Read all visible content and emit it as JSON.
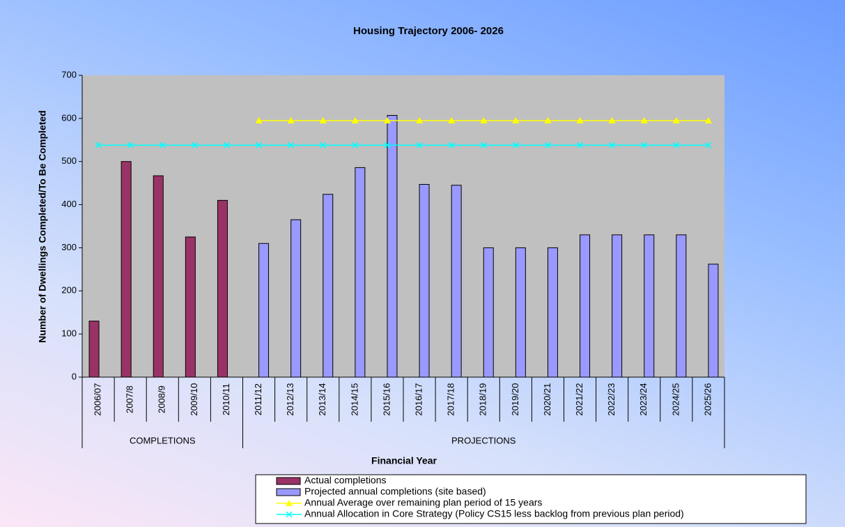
{
  "chart_data": {
    "type": "bar",
    "title": "Housing Trajectory 2006- 2026",
    "x_label": "Financial Year",
    "y_label": "Number of Dwellings Completed/To Be Completed",
    "categories": [
      "2006/07",
      "2007/8",
      "2008/9",
      "2009/10",
      "2010/11",
      "2011/12",
      "2012/13",
      "2013/14",
      "2014/15",
      "2015/16",
      "2016/17",
      "2017/18",
      "2018/19",
      "2019/20",
      "2020/21",
      "2021/22",
      "2022/23",
      "2023/24",
      "2024/25",
      "2025/26"
    ],
    "groups": [
      {
        "label": "COMPLETIONS",
        "count": 5
      },
      {
        "label": "PROJECTIONS",
        "count": 15
      }
    ],
    "series": [
      {
        "name": "Actual completions",
        "kind": "bar",
        "color": "#993366",
        "values": [
          130,
          500,
          467,
          325,
          410,
          null,
          null,
          null,
          null,
          null,
          null,
          null,
          null,
          null,
          null,
          null,
          null,
          null,
          null,
          null
        ]
      },
      {
        "name": "Projected annual completions (site based)",
        "kind": "bar",
        "color": "#9999ff",
        "values": [
          null,
          null,
          null,
          null,
          null,
          310,
          365,
          424,
          486,
          607,
          447,
          445,
          300,
          300,
          300,
          330,
          330,
          330,
          330,
          262
        ]
      },
      {
        "name": "Annual Average over remaining plan period of 15 years",
        "kind": "line",
        "marker": "triangle",
        "color": "#ffff00",
        "values": [
          null,
          null,
          null,
          null,
          null,
          595,
          595,
          595,
          595,
          595,
          595,
          595,
          595,
          595,
          595,
          595,
          595,
          595,
          595,
          595
        ]
      },
      {
        "name": "Annual Allocation in Core Strategy (Policy CS15 less backlog from previous plan period)",
        "kind": "line",
        "marker": "x",
        "color": "#00ffff",
        "values": [
          538,
          538,
          538,
          538,
          538,
          538,
          538,
          538,
          538,
          538,
          538,
          538,
          538,
          538,
          538,
          538,
          538,
          538,
          538,
          538
        ]
      }
    ],
    "ylim": [
      0,
      700
    ],
    "yticks": [
      0,
      100,
      200,
      300,
      400,
      500,
      600,
      700
    ],
    "grid": false,
    "legend": "bottom-right"
  }
}
